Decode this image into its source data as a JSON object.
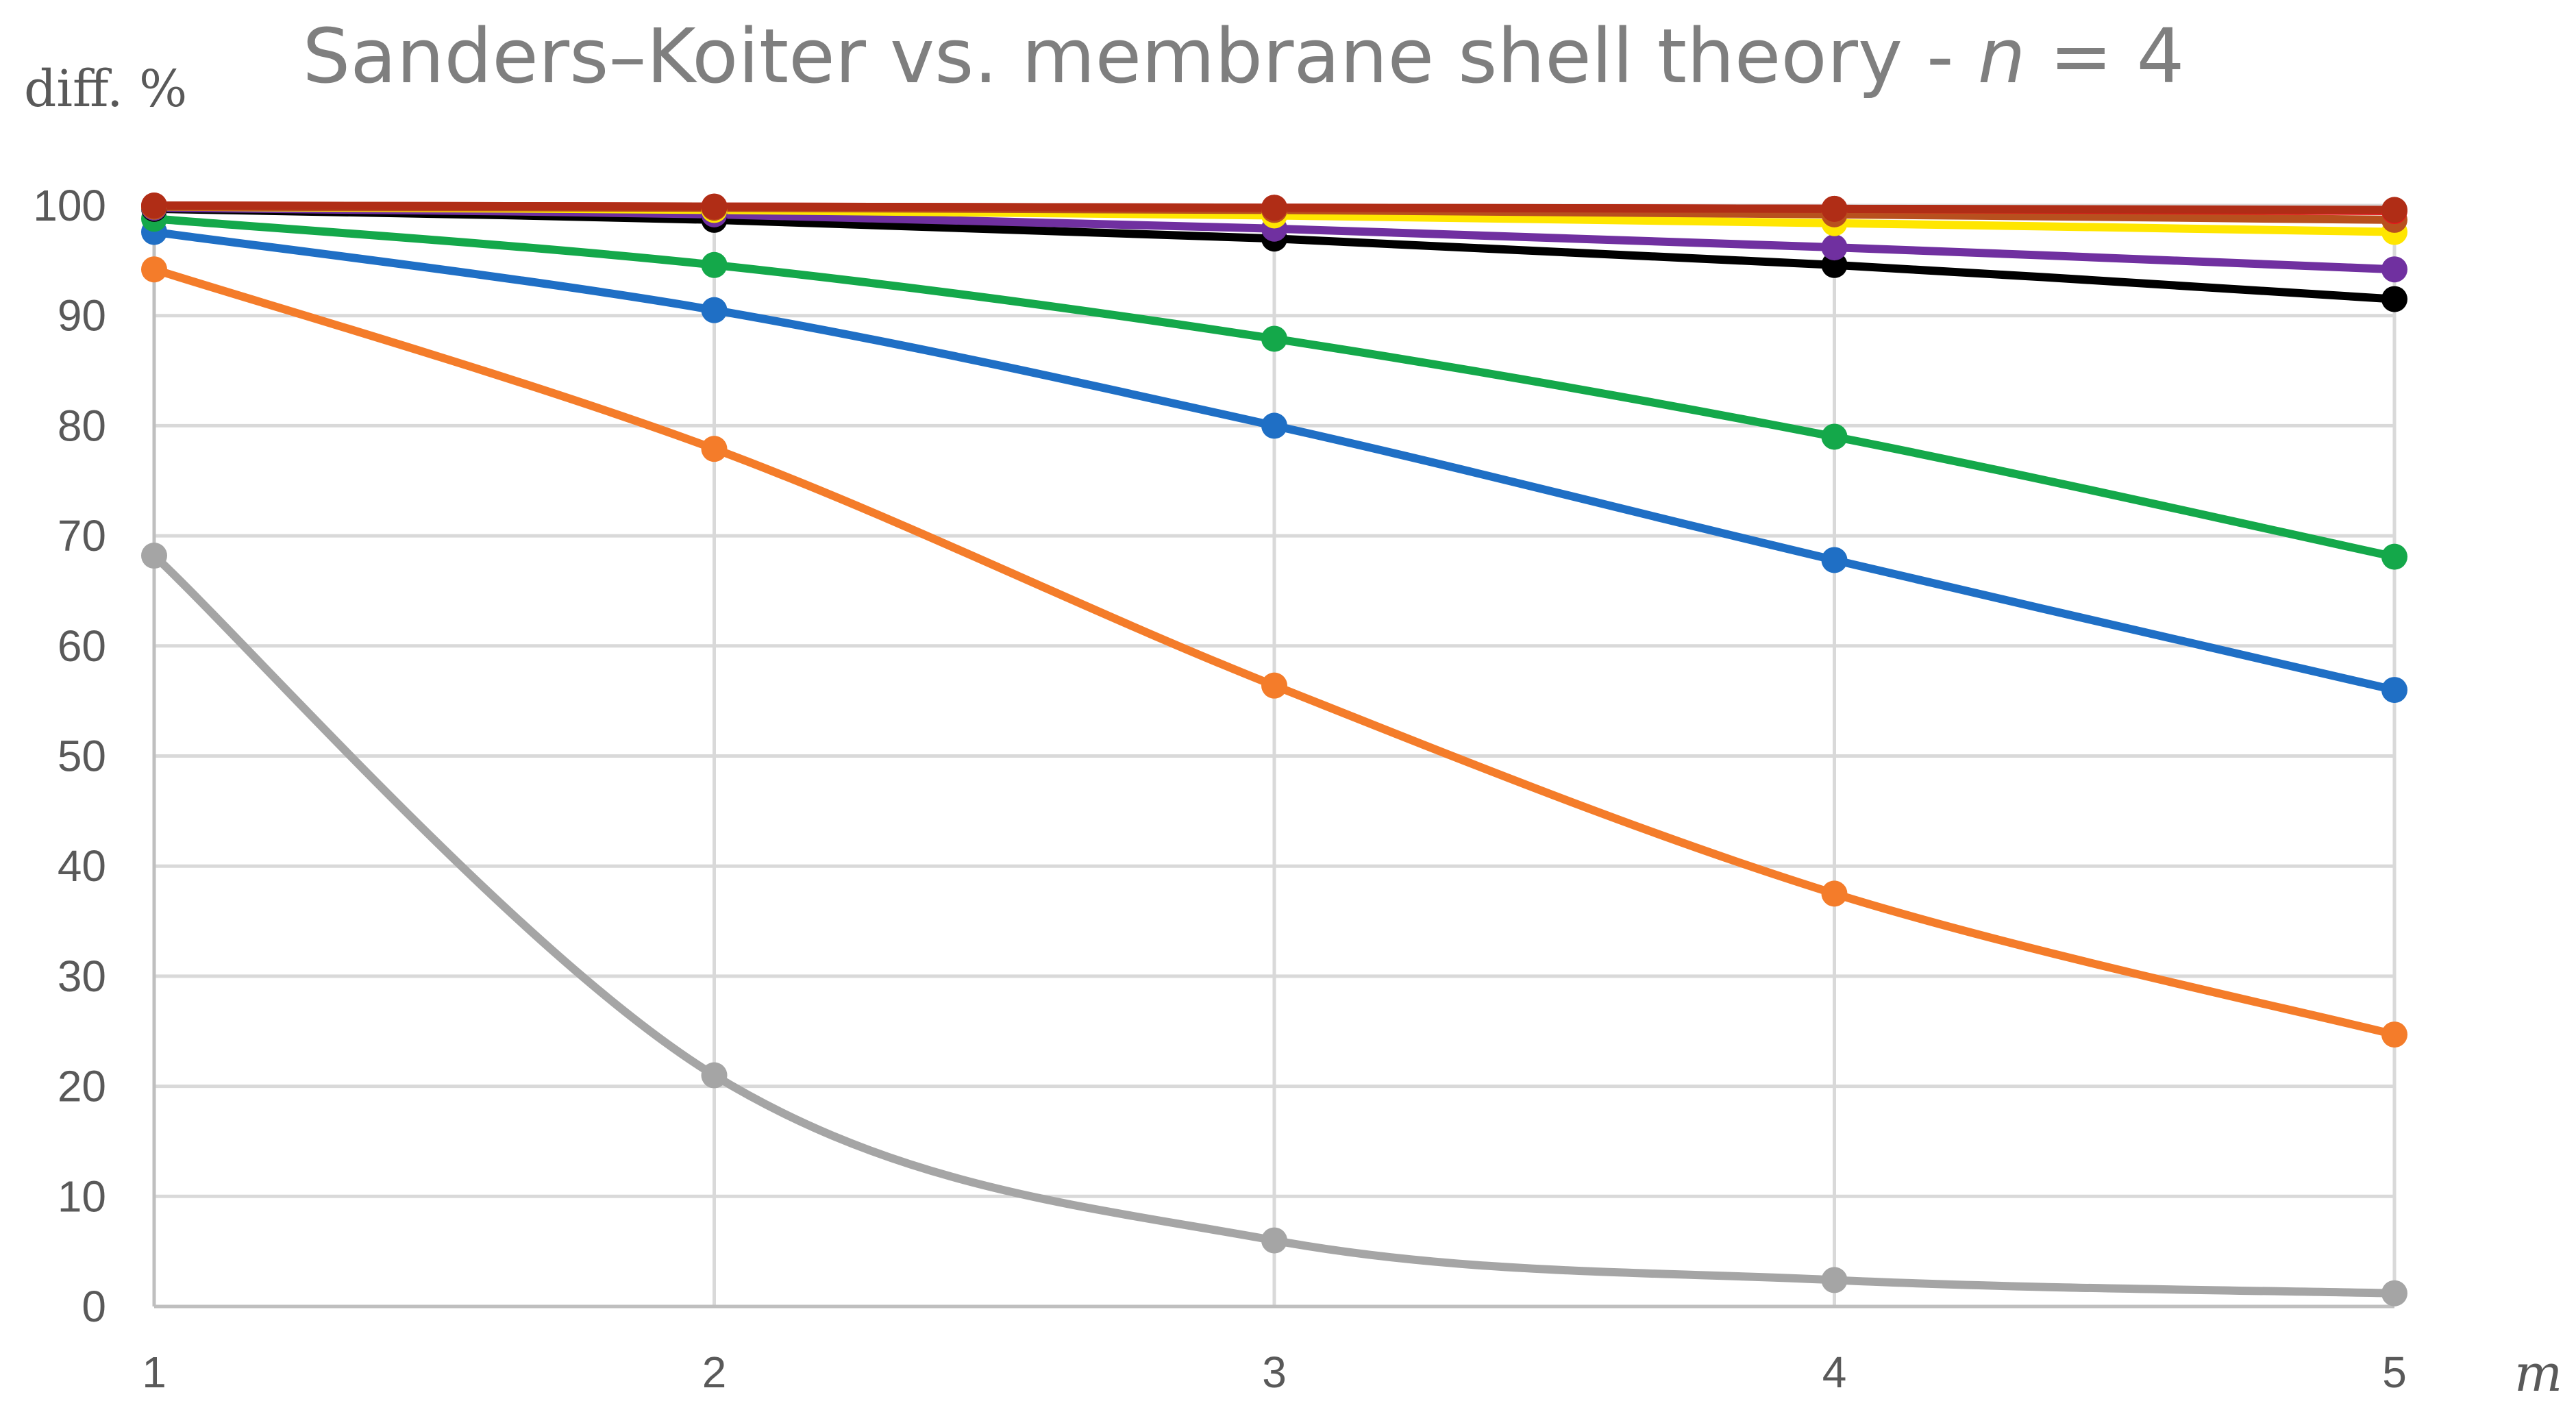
{
  "chart_data": {
    "type": "line",
    "title": "Sanders–Koiter vs. membrane shell theory - ",
    "title_var": "n",
    "title_suffix": " = 4",
    "ylabel": "diff. %",
    "xlabel": "m",
    "x": [
      1,
      2,
      3,
      4,
      5
    ],
    "xticks": [
      "1",
      "2",
      "3",
      "4",
      "5"
    ],
    "ylim": [
      0,
      100
    ],
    "yticks": [
      0,
      10,
      20,
      30,
      40,
      50,
      60,
      70,
      80,
      90,
      100
    ],
    "grid": true,
    "legend": "none",
    "series": [
      {
        "name": "gray",
        "color": "#a5a5a5",
        "values": [
          68.2,
          21.0,
          6.0,
          2.4,
          1.2
        ]
      },
      {
        "name": "orange",
        "color": "#f47c2a",
        "values": [
          94.2,
          77.9,
          56.4,
          37.5,
          24.7
        ]
      },
      {
        "name": "blue",
        "color": "#1f6fc5",
        "values": [
          97.6,
          90.5,
          80.0,
          67.8,
          56.0
        ]
      },
      {
        "name": "green",
        "color": "#14a84a",
        "values": [
          98.8,
          94.6,
          87.9,
          79.0,
          68.1
        ]
      },
      {
        "name": "black",
        "color": "#000000",
        "values": [
          99.7,
          98.7,
          97.0,
          94.6,
          91.5
        ]
      },
      {
        "name": "purple",
        "color": "#7030a0",
        "values": [
          99.8,
          99.2,
          97.9,
          96.2,
          94.2
        ]
      },
      {
        "name": "yellow",
        "color": "#ffe600",
        "values": [
          99.9,
          99.6,
          99.1,
          98.4,
          97.6
        ]
      },
      {
        "name": "brown",
        "color": "#b8501e",
        "values": [
          99.9,
          99.8,
          99.6,
          99.2,
          98.7
        ]
      },
      {
        "name": "red",
        "color": "#e8141c",
        "values": [
          100.0,
          99.9,
          99.8,
          99.7,
          99.5
        ]
      },
      {
        "name": "dark-red",
        "color": "#b02d16",
        "values": [
          100.0,
          99.9,
          99.8,
          99.7,
          99.6
        ]
      }
    ]
  }
}
